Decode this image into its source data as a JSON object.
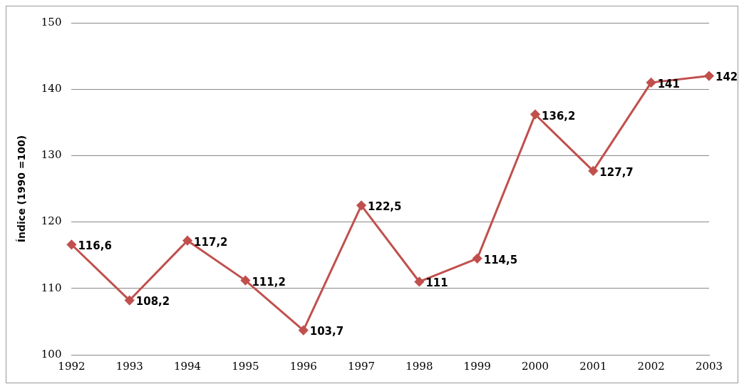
{
  "chart_data": {
    "type": "line",
    "ylabel": "Índice (1990 =100)",
    "categories": [
      "1992",
      "1993",
      "1994",
      "1995",
      "1996",
      "1997",
      "1998",
      "1999",
      "2000",
      "2001",
      "2002",
      "2003"
    ],
    "values": [
      116.6,
      108.2,
      117.2,
      111.2,
      103.7,
      122.5,
      111,
      114.5,
      136.2,
      127.7,
      141,
      142
    ],
    "value_labels": [
      "116,6",
      "108,2",
      "117,2",
      "111,2",
      "103,7",
      "122,5",
      "111",
      "114,5",
      "136,2",
      "127,7",
      "141",
      "142"
    ],
    "color": "#c0504d",
    "marker": "diamond",
    "line_style": "solid",
    "ylim": [
      100,
      150
    ],
    "yticks": [
      100,
      110,
      120,
      130,
      140,
      150
    ],
    "grid": "y",
    "legend": false
  }
}
